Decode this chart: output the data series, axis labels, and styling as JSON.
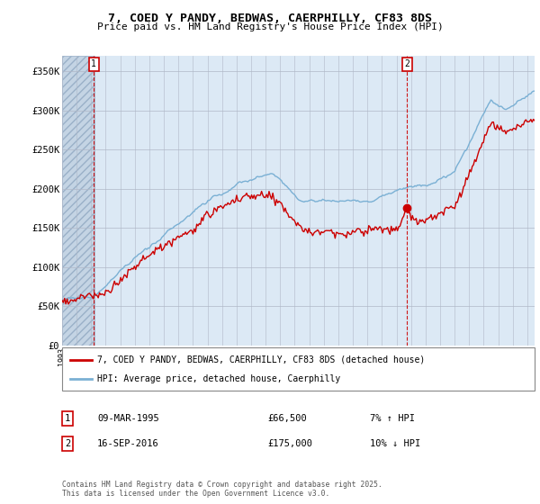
{
  "title_line1": "7, COED Y PANDY, BEDWAS, CAERPHILLY, CF83 8DS",
  "title_line2": "Price paid vs. HM Land Registry's House Price Index (HPI)",
  "ylabel_ticks": [
    "£0",
    "£50K",
    "£100K",
    "£150K",
    "£200K",
    "£250K",
    "£300K",
    "£350K"
  ],
  "ylabel_values": [
    0,
    50000,
    100000,
    150000,
    200000,
    250000,
    300000,
    350000
  ],
  "ylim": [
    0,
    370000
  ],
  "xlim_start": 1993.0,
  "xlim_end": 2025.5,
  "background_plot": "#dce9f5",
  "background_hatch": "#c4d4e4",
  "hatch_end_year": 1995.2,
  "marker1_year": 1995.18,
  "marker1_label": "1",
  "marker2_year": 2016.72,
  "marker2_label": "2",
  "line1_color": "#cc0000",
  "line2_color": "#7ab0d4",
  "legend_line1": "7, COED Y PANDY, BEDWAS, CAERPHILLY, CF83 8DS (detached house)",
  "legend_line2": "HPI: Average price, detached house, Caerphilly",
  "annotation1_date": "09-MAR-1995",
  "annotation1_price": "£66,500",
  "annotation1_hpi": "7% ↑ HPI",
  "annotation2_date": "16-SEP-2016",
  "annotation2_price": "£175,000",
  "annotation2_hpi": "10% ↓ HPI",
  "footer": "Contains HM Land Registry data © Crown copyright and database right 2025.\nThis data is licensed under the Open Government Licence v3.0.",
  "grid_color": "#b0b8c8",
  "marker_box_color": "#cc0000"
}
